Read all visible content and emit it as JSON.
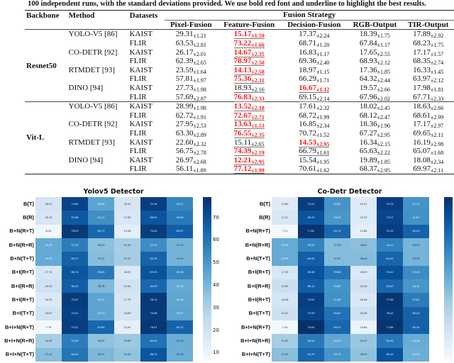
{
  "caption": "100 independent runs, with the standard deviations provided. We use bold red font and underline to highlight the best results.",
  "table": {
    "headers": {
      "backbone": "Backbone",
      "method": "Method",
      "datasets": "Datasets",
      "group": "Fusion Strategy",
      "columns": [
        "Pixel-Fusion",
        "Feature-Fusion",
        "Decision-Fusion",
        "RGB-Output",
        "TIR-Output"
      ]
    },
    "groups": [
      {
        "backbone": "Resnet50",
        "rows": [
          {
            "method": "YOLO-V5 [86]",
            "dataset": "KAIST",
            "cells": [
              [
                "29.31",
                "±1.21"
              ],
              [
                "15.17",
                "±1.59"
              ],
              [
                "17.37",
                "±2.24"
              ],
              [
                "18.39",
                "±1.75"
              ],
              [
                "17.89",
                "±2.92"
              ]
            ],
            "best": 1,
            "second": -1
          },
          {
            "method": "",
            "dataset": "FLIR",
            "cells": [
              [
                "63.53",
                "±2.81"
              ],
              [
                "73.22",
                "±1.66"
              ],
              [
                "68.71",
                "±1.20"
              ],
              [
                "67.84",
                "±1.17"
              ],
              [
                "68.23",
                "±1.75"
              ]
            ],
            "best": 1,
            "second": -1
          },
          {
            "method": "CO-DETR [92]",
            "dataset": "KAIST",
            "cells": [
              [
                "26.17",
                "±2.01"
              ],
              [
                "14.67",
                "±2.35"
              ],
              [
                "16.83",
                "±1.17"
              ],
              [
                "17.65",
                "±2.55"
              ],
              [
                "17.17",
                "±1.57"
              ]
            ],
            "best": 1,
            "second": -1
          },
          {
            "method": "",
            "dataset": "FLIR",
            "cells": [
              [
                "62.39",
                "±2.65"
              ],
              [
                "78.97",
                "±2.50"
              ],
              [
                "69.36",
                "±2.40"
              ],
              [
                "68.93",
                "±2.12"
              ],
              [
                "68.35",
                "±2.74"
              ]
            ],
            "best": 1,
            "second": -1
          },
          {
            "method": "RTMDET [93]",
            "dataset": "KAIST",
            "cells": [
              [
                "23.59",
                "±1.64"
              ],
              [
                "14.13",
                "±2.58"
              ],
              [
                "18.97",
                "±1.15"
              ],
              [
                "17.36",
                "±1.85"
              ],
              [
                "16.33",
                "±1.45"
              ]
            ],
            "best": 1,
            "second": -1
          },
          {
            "method": "",
            "dataset": "FLIR",
            "cells": [
              [
                "57.81",
                "±1.97"
              ],
              [
                "75.36",
                "±2.31"
              ],
              [
                "66.29",
                "±1.71"
              ],
              [
                "64.32",
                "±2.44"
              ],
              [
                "63.97",
                "±2.12"
              ]
            ],
            "best": 1,
            "second": -1
          },
          {
            "method": "DINO [94]",
            "dataset": "KAIST",
            "cells": [
              [
                "27.73",
                "±1.98"
              ],
              [
                "18.93",
                "±2.16"
              ],
              [
                "16.67",
                "±1.12"
              ],
              [
                "19.57",
                "±2.66"
              ],
              [
                "17.98",
                "±1.81"
              ]
            ],
            "best": 2,
            "second": 1
          },
          {
            "method": "",
            "dataset": "FLIR",
            "cells": [
              [
                "57.69",
                "±2.87"
              ],
              [
                "76.83",
                "±2.33"
              ],
              [
                "69.15",
                "±2.14"
              ],
              [
                "67.96",
                "±2.02"
              ],
              [
                "67.71",
                "±2.33"
              ]
            ],
            "best": 1,
            "second": 2
          }
        ]
      },
      {
        "backbone": "Vit-L",
        "rows": [
          {
            "method": "YOLO-V5 [86]",
            "dataset": "KAIST",
            "cells": [
              [
                "28.99",
                "±1.98"
              ],
              [
                "13.52",
                "±2.18"
              ],
              [
                "17.61",
                "±2.32"
              ],
              [
                "18.02",
                "±2.45"
              ],
              [
                "18.63",
                "±2.66"
              ]
            ],
            "best": 1,
            "second": -1
          },
          {
            "method": "",
            "dataset": "FLIR",
            "cells": [
              [
                "62.72",
                "±1.91"
              ],
              [
                "72.67",
                "±2.71"
              ],
              [
                "68.72",
                "±1.99"
              ],
              [
                "68.12",
                "±2.47"
              ],
              [
                "68.61",
                "±2.99"
              ]
            ],
            "best": 1,
            "second": -1
          },
          {
            "method": "CO-DETR [92]",
            "dataset": "KAIST",
            "cells": [
              [
                "27.95",
                "±2.53"
              ],
              [
                "13.63",
                "±1.53"
              ],
              [
                "16.85",
                "±2.34"
              ],
              [
                "18.36",
                "±1.90"
              ],
              [
                "17.17",
                "±2.97"
              ]
            ],
            "best": 1,
            "second": -1
          },
          {
            "method": "",
            "dataset": "FLIR",
            "cells": [
              [
                "63.30",
                "±2.89"
              ],
              [
                "76.55",
                "±2.35"
              ],
              [
                "70.72",
                "±1.52"
              ],
              [
                "67.27",
                "±2.95"
              ],
              [
                "69.65",
                "±2.11"
              ]
            ],
            "best": 1,
            "second": -1
          },
          {
            "method": "RTMDET [93]",
            "dataset": "KAIST",
            "cells": [
              [
                "22.60",
                "±2.32"
              ],
              [
                "15.11",
                "±2.65"
              ],
              [
                "14.53",
                "±2.95"
              ],
              [
                "16.34",
                "±2.15"
              ],
              [
                "16.19",
                "±2.98"
              ]
            ],
            "best": 2,
            "second": 1
          },
          {
            "method": "",
            "dataset": "FLIR",
            "cells": [
              [
                "56.75",
                "±2.78"
              ],
              [
                "74.39",
                "±2.19"
              ],
              [
                "66.79",
                "±1.61"
              ],
              [
                "65.63",
                "±2.22"
              ],
              [
                "65.07",
                "±1.68"
              ]
            ],
            "best": 1,
            "second": 2
          },
          {
            "method": "DINO [94]",
            "dataset": "KAIST",
            "cells": [
              [
                "26.97",
                "±2.68"
              ],
              [
                "12.21",
                "±2.95"
              ],
              [
                "15.54",
                "±1.95"
              ],
              [
                "19.89",
                "±1.85"
              ],
              [
                "18.08",
                "±2.34"
              ]
            ],
            "best": 1,
            "second": -1
          },
          {
            "method": "",
            "dataset": "FLIR",
            "cells": [
              [
                "56.11",
                "±1.89"
              ],
              [
                "77.12",
                "±1.99"
              ],
              [
                "70.61",
                "±1.62"
              ],
              [
                "68.37",
                "±2.95"
              ],
              [
                "69.97",
                "±2.11"
              ]
            ],
            "best": 1,
            "second": -1
          }
        ]
      }
    ]
  },
  "chart_data": [
    {
      "type": "heatmap",
      "title": "Yolov5 Detector",
      "colormap": "Blues",
      "colorbar_ticks": [
        10,
        20,
        30,
        40,
        50,
        60,
        70
      ],
      "rows": [
        "B(T)",
        "B(R)",
        "B+N(R+T)",
        "B+N(R+R)",
        "B+N(T+T)",
        "B+I(R+T)",
        "B+I(R+R)",
        "B+I(R+T)",
        "B+I(T+T)",
        "B+I+N(R+T)",
        "B+I+N(R+R)",
        "B+I+N(T+T)"
      ],
      "values": [
        [
          18.91,
          73.84,
          45.81,
          18.42,
          75.16,
          55.27
        ],
        [
          18.19,
          67.86,
          52.12,
          17.65,
          68.93,
          58.58
        ],
        [
          8.35,
          76.53,
          63.77,
          13.56,
          75.42,
          65.97
        ],
        [
          43.79,
          57.53,
          36.53,
          31.43,
          53.13,
          40.7
        ],
        [
          43.79,
          65.37,
          37.51,
          31.57,
          64.76,
          40.92
        ],
        [
          17.74,
          68.74,
          58.83,
          16.51,
          69.33,
          55.28
        ],
        [
          20.52,
          66.35,
          38.78,
          19.94,
          63.63,
          43.74
        ],
        [
          16.35,
          75.57,
          45.31,
          17.79,
          76.15,
          45.18
        ],
        [
          20.07,
          74.21,
          45.53,
          18.83,
          75.98,
          45.97
        ],
        [
          7.79,
          75.22,
          63.89,
          12.67,
          76.97,
          64.79
        ],
        [
          31.35,
          57.83,
          36.04,
          33.85,
          60.83,
          42.33
        ],
        [
          37.42,
          60.03,
          39.31,
          35.39,
          68.74,
          42.33
        ]
      ]
    },
    {
      "type": "heatmap",
      "title": "Co-Detr Detector",
      "colormap": "Blues",
      "colorbar_ticks": [
        10,
        20,
        30,
        40,
        50,
        60,
        70
      ],
      "rows": [
        "B(T)",
        "B(R)",
        "B+N(R+T)",
        "B+N(R+R)",
        "B+N(T+T)",
        "B+I(R+T)",
        "B+I(R+R)",
        "B+I(R+T)",
        "B+I(T+T)",
        "B+I+N(R+T)",
        "B+I+N(R+R)",
        "B+I+N(T+T)"
      ],
      "values": [
        [
          14.6,
          75.21,
          50.82,
          15.21,
          74.79,
          51.21
        ],
        [
          17.21,
          69.13,
          50.09,
          15.57,
          73.27,
          51.67
        ],
        [
          7.71,
          77.81,
          63.74,
          12.89,
          75.33,
          65.03
        ],
        [
          43.53,
          55.52,
          37.59,
          36.83,
          56.41,
          40.53
        ],
        [
          43.59,
          65.95,
          37.87,
          38.09,
          64.43,
          40.59
        ],
        [
          17.59,
          69.48,
          59.68,
          16.53,
          70.41,
          53.4
        ],
        [
          21.89,
          66.12,
          50.89,
          20.09,
          63.83,
          50.16
        ],
        [
          18.56,
          74.91,
          51.89,
          16.56,
          77.56,
          57.81
        ],
        [
          21.07,
          73.59,
          60.62,
          20.28,
          76.43,
          65.03
        ],
        [
          7.45,
          79.05,
          63.57,
          10.6,
          77.86,
          65.29
        ],
        [
          31.83,
          58.32,
          45.03,
          34.37,
          59.35,
          43.18
        ],
        [
          37.09,
          63.79,
          50.75,
          36.09,
          69.43,
          42.59
        ]
      ]
    }
  ]
}
